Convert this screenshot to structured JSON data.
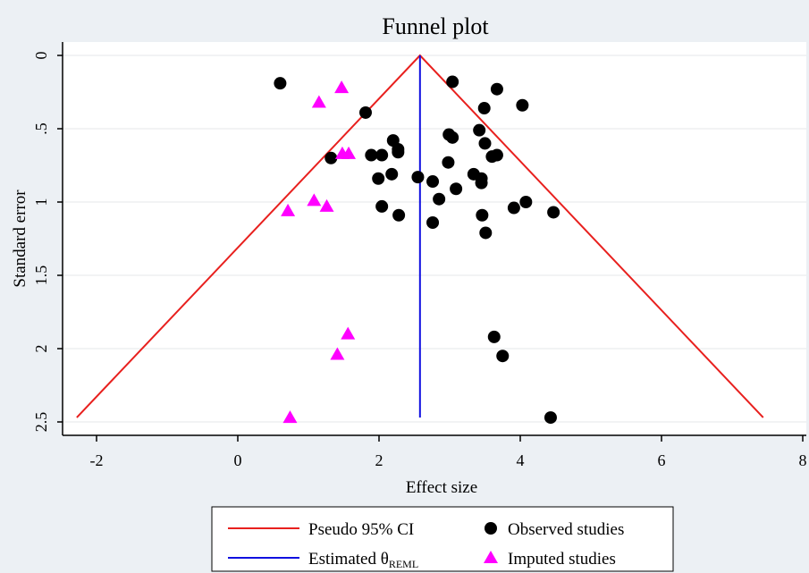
{
  "chart_data": {
    "type": "scatter",
    "title": "Funnel plot",
    "xlabel": "Effect size",
    "ylabel": "Standard error",
    "xlim": [
      -2.5,
      8
    ],
    "ylim": [
      0,
      2.5
    ],
    "y_reversed": true,
    "xticks": [
      -2,
      0,
      2,
      4,
      6,
      8
    ],
    "xtick_labels": [
      "-2",
      "0",
      "2",
      "4",
      "6",
      "8"
    ],
    "yticks": [
      0,
      0.5,
      1,
      1.5,
      2,
      2.5
    ],
    "ytick_labels": [
      "0",
      ".5",
      "1",
      "1.5",
      "2",
      "2.5"
    ],
    "grid": true,
    "legend_position": "bottom",
    "colors": {
      "background": "#ecf0f4",
      "plot_area": "#ffffff",
      "ci_line": "#e8201e",
      "estimate_line": "#1010e0",
      "observed": "#000000",
      "imputed": "#ff00ff"
    },
    "estimated_effect": 2.58,
    "pseudo_ci": {
      "apex": [
        2.58,
        0
      ],
      "lower_end": [
        -2.28,
        2.47
      ],
      "upper_end": [
        7.44,
        2.47
      ]
    },
    "series": [
      {
        "name": "Observed studies",
        "marker": "circle",
        "points": [
          [
            0.6,
            0.19
          ],
          [
            3.04,
            0.18
          ],
          [
            3.67,
            0.23
          ],
          [
            1.81,
            0.39
          ],
          [
            3.49,
            0.36
          ],
          [
            4.03,
            0.34
          ],
          [
            3.42,
            0.51
          ],
          [
            2.99,
            0.54
          ],
          [
            3.04,
            0.56
          ],
          [
            2.2,
            0.58
          ],
          [
            3.5,
            0.6
          ],
          [
            2.27,
            0.64
          ],
          [
            2.27,
            0.66
          ],
          [
            3.67,
            0.68
          ],
          [
            3.6,
            0.69
          ],
          [
            1.89,
            0.68
          ],
          [
            2.04,
            0.68
          ],
          [
            1.32,
            0.7
          ],
          [
            2.98,
            0.73
          ],
          [
            2.18,
            0.81
          ],
          [
            3.34,
            0.81
          ],
          [
            1.99,
            0.84
          ],
          [
            2.55,
            0.83
          ],
          [
            3.45,
            0.84
          ],
          [
            3.45,
            0.87
          ],
          [
            2.76,
            0.86
          ],
          [
            3.09,
            0.91
          ],
          [
            4.08,
            1.0
          ],
          [
            2.85,
            0.98
          ],
          [
            3.91,
            1.04
          ],
          [
            2.04,
            1.03
          ],
          [
            2.28,
            1.09
          ],
          [
            3.46,
            1.09
          ],
          [
            4.47,
            1.07
          ],
          [
            2.76,
            1.14
          ],
          [
            3.51,
            1.21
          ],
          [
            3.63,
            1.92
          ],
          [
            3.75,
            2.05
          ],
          [
            4.43,
            2.47
          ]
        ]
      },
      {
        "name": "Imputed studies",
        "marker": "triangle",
        "points": [
          [
            1.47,
            0.22
          ],
          [
            1.15,
            0.32
          ],
          [
            1.48,
            0.67
          ],
          [
            1.57,
            0.67
          ],
          [
            1.08,
            0.99
          ],
          [
            1.26,
            1.03
          ],
          [
            0.71,
            1.06
          ],
          [
            1.56,
            1.9
          ],
          [
            1.41,
            2.04
          ],
          [
            0.74,
            2.47
          ]
        ]
      }
    ],
    "legend": {
      "ci_label": "Pseudo 95% CI",
      "estimate_label": "Estimated θ",
      "estimate_subscript": "REML",
      "observed_label": "Observed studies",
      "imputed_label": "Imputed studies"
    }
  }
}
